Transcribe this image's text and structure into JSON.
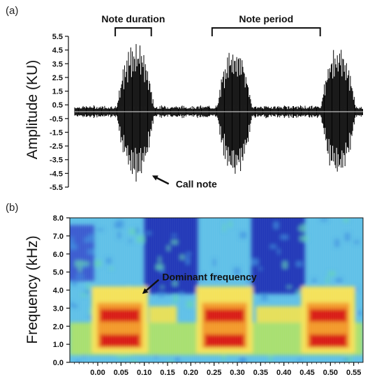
{
  "chart_data": [
    {
      "panel": "(a)",
      "type": "line",
      "ylabel": "Amplitude (KU)",
      "ylim": [
        -5.5,
        5.5
      ],
      "yticks": [
        "5.5",
        "4.5",
        "3.5",
        "2.5",
        "1.5",
        "0.5",
        "-0.5",
        "-1.5",
        "-2.5",
        "-3.5",
        "-4.5",
        "-5.5"
      ],
      "xlim": [
        -0.08,
        0.56
      ],
      "series": [
        {
          "values_description": "waveform envelope",
          "notes": [
            {
              "center": 0.055,
              "width": 0.085,
              "peak": 5.3
            },
            {
              "center": 0.275,
              "width": 0.08,
              "peak": 5.0
            },
            {
              "center": 0.505,
              "width": 0.08,
              "peak": 4.9
            }
          ],
          "noise_floor": 0.4
        }
      ],
      "annotations": [
        {
          "text": "Note duration",
          "x_from": 0.01,
          "x_to": 0.09
        },
        {
          "text": "Note period",
          "x_from": 0.225,
          "x_to": 0.465
        },
        {
          "text": "Call note",
          "arrow_to_x": 0.09,
          "arrow_to_y": -4.6
        }
      ]
    },
    {
      "panel": "(b)",
      "type": "heatmap",
      "ylabel": "Frequency (kHz)",
      "ylim": [
        0.0,
        8.0
      ],
      "yticks": [
        "8.0",
        "7.0",
        "6.0",
        "5.0",
        "4.0",
        "3.0",
        "2.0",
        "1.0",
        "0.0"
      ],
      "xlim": [
        -0.06,
        0.57
      ],
      "xticks": [
        "0.00",
        "0.05",
        "0.10",
        "0.15",
        "0.20",
        "0.25",
        "0.30",
        "0.35",
        "0.40",
        "0.45",
        "0.50",
        "0.55"
      ],
      "xtick_values": [
        0.0,
        0.05,
        0.1,
        0.15,
        0.2,
        0.25,
        0.3,
        0.35,
        0.4,
        0.45,
        0.5,
        0.55
      ],
      "notes": [
        {
          "start": 0.005,
          "end": 0.09
        },
        {
          "start": 0.23,
          "end": 0.315
        },
        {
          "start": 0.455,
          "end": 0.535
        }
      ],
      "dominant_bands_khz": [
        2.6,
        1.2
      ],
      "annotations": [
        {
          "text": "Dominant frequency",
          "arrow_to_x": 0.095,
          "arrow_to_y": 3.8
        }
      ]
    }
  ]
}
